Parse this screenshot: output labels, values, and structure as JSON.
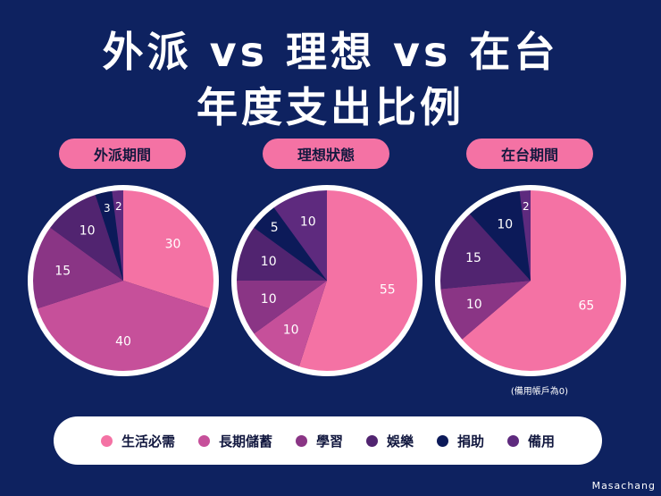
{
  "title": {
    "line1": "外派 vs  理想 vs 在台",
    "line2": "年度支出比例"
  },
  "colors": {
    "生活必需": "#f472a4",
    "長期儲蓄": "#c6509a",
    "學習": "#8a3585",
    "娛樂": "#512470",
    "捐助": "#0c1a59",
    "備用": "#5e2a7e"
  },
  "legend": [
    {
      "label": "生活必需",
      "color": "#f472a4"
    },
    {
      "label": "長期儲蓄",
      "color": "#c6509a"
    },
    {
      "label": "學習",
      "color": "#8a3585"
    },
    {
      "label": "娛樂",
      "color": "#512470"
    },
    {
      "label": "捐助",
      "color": "#0c1a59"
    },
    {
      "label": "備用",
      "color": "#5e2a7e"
    }
  ],
  "chart_data": [
    {
      "type": "pie",
      "title": "外派期間",
      "categories": [
        "生活必需",
        "長期儲蓄",
        "學習",
        "娛樂",
        "捐助",
        "備用"
      ],
      "values": [
        30,
        40,
        15,
        10,
        3,
        2
      ]
    },
    {
      "type": "pie",
      "title": "理想狀態",
      "categories": [
        "生活必需",
        "長期儲蓄",
        "學習",
        "娛樂",
        "捐助",
        "備用"
      ],
      "values": [
        55,
        10,
        10,
        10,
        5,
        10
      ]
    },
    {
      "type": "pie",
      "title": "在台期間",
      "categories": [
        "生活必需",
        "學習",
        "娛樂",
        "捐助",
        "備用"
      ],
      "values": [
        65,
        10,
        15,
        10,
        2
      ]
    }
  ],
  "note": "(備用帳戶為0)",
  "credit": "Masachang"
}
